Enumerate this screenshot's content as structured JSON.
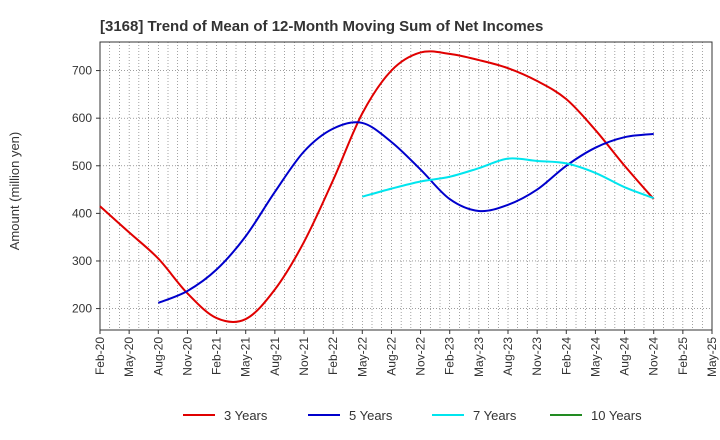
{
  "chart_data": {
    "type": "line",
    "title": "[3168]  Trend of Mean of 12-Month Moving Sum of Net Incomes",
    "xlabel": "",
    "ylabel": "Amount (million yen)",
    "x": [
      "Feb-20",
      "May-20",
      "Aug-20",
      "Nov-20",
      "Feb-21",
      "May-21",
      "Aug-21",
      "Nov-21",
      "Feb-22",
      "May-22",
      "Aug-22",
      "Nov-22",
      "Feb-23",
      "May-23",
      "Aug-23",
      "Nov-23",
      "Feb-24",
      "May-24",
      "Aug-24",
      "Nov-24",
      "Feb-25",
      "May-25"
    ],
    "ylim": [
      155,
      760
    ],
    "yticks": [
      200,
      300,
      400,
      500,
      600,
      700
    ],
    "grid": true,
    "legend_position": "bottom",
    "series": [
      {
        "name": "3 Years",
        "color": "#e00000",
        "values": [
          415,
          360,
          305,
          232,
          180,
          178,
          240,
          340,
          470,
          610,
          700,
          738,
          735,
          722,
          705,
          678,
          640,
          575,
          500,
          430,
          null,
          null
        ]
      },
      {
        "name": "5 Years",
        "color": "#0000cc",
        "values": [
          null,
          null,
          212,
          237,
          282,
          352,
          445,
          530,
          578,
          590,
          550,
          492,
          430,
          405,
          418,
          450,
          500,
          538,
          560,
          567,
          null,
          null
        ]
      },
      {
        "name": "7 Years",
        "color": "#00e5ee",
        "values": [
          null,
          null,
          null,
          null,
          null,
          null,
          null,
          null,
          null,
          435,
          452,
          467,
          477,
          495,
          515,
          510,
          505,
          485,
          455,
          432,
          null,
          null
        ]
      },
      {
        "name": "10 Years",
        "color": "#228b22",
        "values": [
          null,
          null,
          null,
          null,
          null,
          null,
          null,
          null,
          null,
          null,
          null,
          null,
          null,
          null,
          null,
          null,
          null,
          null,
          null,
          null,
          null,
          null
        ]
      }
    ]
  }
}
